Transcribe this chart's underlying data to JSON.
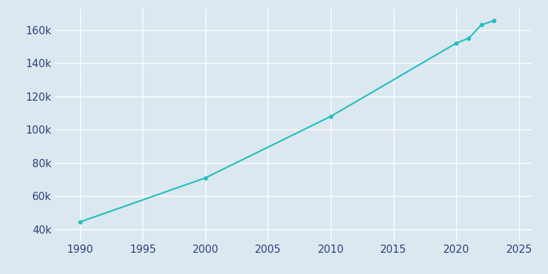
{
  "years": [
    1990,
    2000,
    2010,
    2020,
    2021,
    2022,
    2023
  ],
  "population": [
    44500,
    71000,
    108000,
    152000,
    155000,
    163000,
    165500
  ],
  "line_color": "#20BEBE",
  "marker": "o",
  "marker_size": 3.5,
  "bg_color": "#dce8f0",
  "fig_bg_color": "#dce8f0",
  "grid_color": "#ffffff",
  "tick_color": "#2e3f7a",
  "xlim": [
    1988,
    2026
  ],
  "ylim": [
    33000,
    173000
  ],
  "xticks": [
    1990,
    1995,
    2000,
    2005,
    2010,
    2015,
    2020,
    2025
  ],
  "yticks": [
    40000,
    60000,
    80000,
    100000,
    120000,
    140000,
    160000
  ],
  "tick_fontsize": 11
}
